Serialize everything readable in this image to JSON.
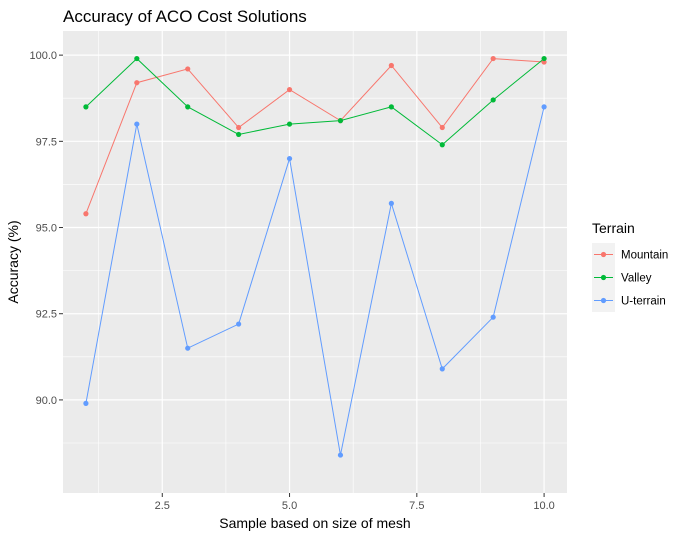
{
  "chart_data": {
    "type": "line",
    "title": "Accuracy of ACO Cost Solutions",
    "xlabel": "Sample based on size of mesh",
    "ylabel": "Accuracy (%)",
    "xlim": [
      0.55,
      10.45
    ],
    "ylim": [
      87.3,
      100.7
    ],
    "x_ticks": [
      2.5,
      5.0,
      7.5,
      10.0
    ],
    "x_tick_labels": [
      "2.5",
      "5.0",
      "7.5",
      "10.0"
    ],
    "y_ticks": [
      90.0,
      92.5,
      95.0,
      97.5,
      100.0
    ],
    "y_tick_labels": [
      "90.0",
      "92.5",
      "95.0",
      "97.5",
      "100.0"
    ],
    "grid": true,
    "legend_title": "Terrain",
    "legend_position": "right",
    "x": [
      1,
      2,
      3,
      4,
      5,
      6,
      7,
      8,
      9,
      10
    ],
    "series": [
      {
        "name": "Mountain",
        "color": "#F8766D",
        "values": [
          95.4,
          99.2,
          99.6,
          97.9,
          99.0,
          98.1,
          99.7,
          97.9,
          99.9,
          99.8
        ]
      },
      {
        "name": "Valley",
        "color": "#00BA38",
        "values": [
          98.5,
          99.9,
          98.5,
          97.7,
          98.0,
          98.1,
          98.5,
          97.4,
          98.7,
          99.9
        ]
      },
      {
        "name": "U-terrain",
        "color": "#619CFF",
        "values": [
          89.9,
          98.0,
          91.5,
          92.2,
          97.0,
          88.4,
          95.7,
          90.9,
          92.4,
          98.5
        ]
      }
    ]
  }
}
